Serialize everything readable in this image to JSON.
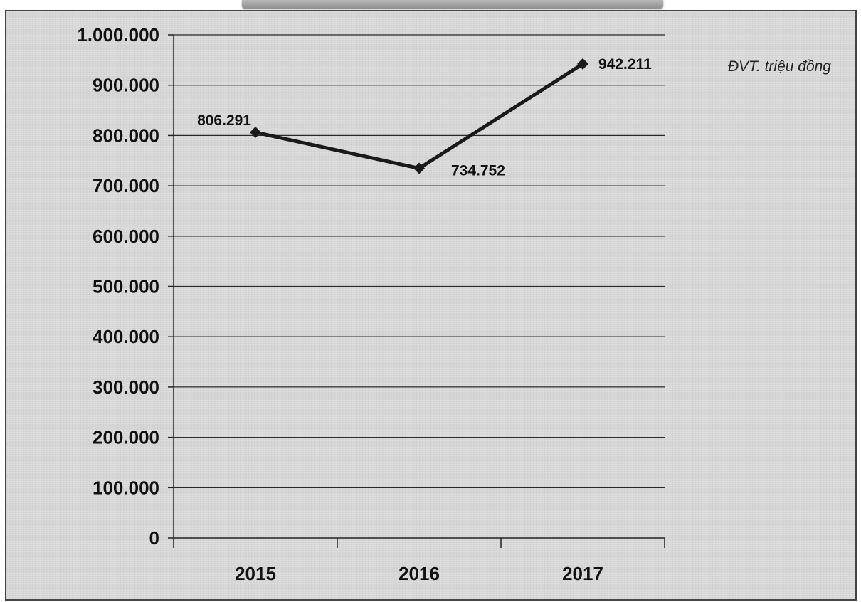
{
  "chart_data": {
    "type": "line",
    "categories": [
      "2015",
      "2016",
      "2017"
    ],
    "series": [
      {
        "values": [
          806291,
          734752,
          942211
        ],
        "data_labels": [
          "806.291",
          "734.752",
          "942.211"
        ]
      }
    ],
    "y_ticks": [
      "0",
      "100.000",
      "200.000",
      "300.000",
      "400.000",
      "500.000",
      "600.000",
      "700.000",
      "800.000",
      "900.000",
      "1.000.000"
    ],
    "ylim": [
      0,
      1000000
    ],
    "grid": true,
    "unit_label": "ĐVT. triệu đồng",
    "marker": "diamond",
    "colors": {
      "line": "#1a1a1a",
      "grid": "#2a2a2a",
      "background": "#d9d9d9"
    }
  }
}
